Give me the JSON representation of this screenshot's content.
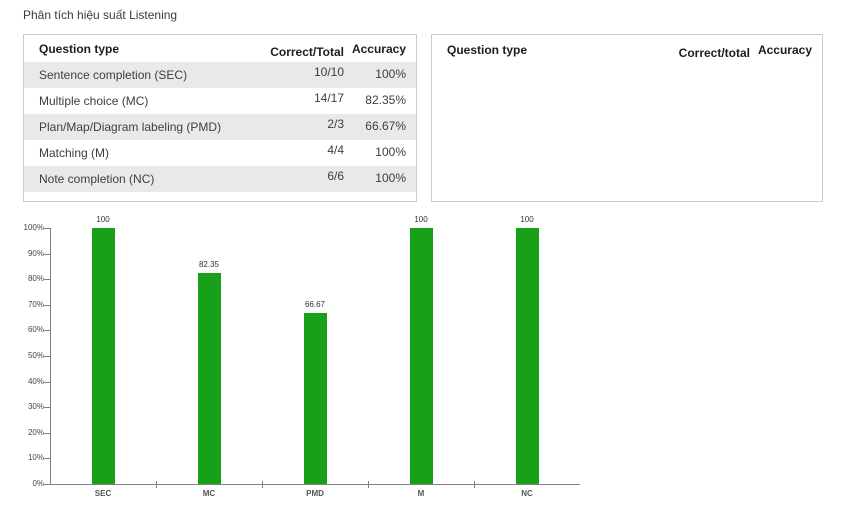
{
  "page": {
    "title": "Phân tích hiệu suất Listening"
  },
  "left_table": {
    "headers": {
      "type": "Question type",
      "correct": "Correct/Total",
      "accuracy": "Accuracy"
    },
    "rows": [
      {
        "type": "Sentence completion (SEC)",
        "correct": "10/10",
        "accuracy": "100%"
      },
      {
        "type": "Multiple choice (MC)",
        "correct": "14/17",
        "accuracy": "82.35%"
      },
      {
        "type": "Plan/Map/Diagram labeling (PMD)",
        "correct": "2/3",
        "accuracy": "66.67%"
      },
      {
        "type": "Matching (M)",
        "correct": "4/4",
        "accuracy": "100%"
      },
      {
        "type": "Note completion (NC)",
        "correct": "6/6",
        "accuracy": "100%"
      }
    ]
  },
  "right_table": {
    "headers": {
      "type": "Question type",
      "correct": "Correct/total",
      "accuracy": "Accuracy"
    },
    "rows": []
  },
  "chart_data": {
    "type": "bar",
    "categories": [
      "SEC",
      "MC",
      "PMD",
      "M",
      "NC"
    ],
    "values": [
      100,
      82.35,
      66.67,
      100,
      100
    ],
    "value_labels": [
      "100",
      "82.35",
      "66.67",
      "100",
      "100"
    ],
    "y_ticks": [
      "0%",
      "10%",
      "20%",
      "30%",
      "40%",
      "50%",
      "60%",
      "70%",
      "80%",
      "90%",
      "100%"
    ],
    "ylim": [
      0,
      100
    ],
    "title": "",
    "xlabel": "",
    "ylabel": "",
    "grid": false,
    "legend": "none",
    "bar_color": "#18a018"
  },
  "colors": {
    "bar": "#18a018",
    "stripe": "#e9e9e9",
    "panel_border": "#cccccc",
    "axis": "#808080"
  }
}
